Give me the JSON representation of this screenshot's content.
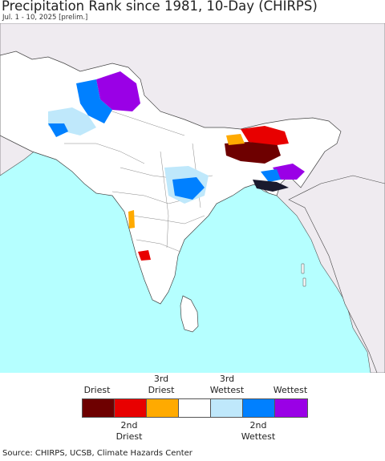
{
  "title": "Precipitation Rank since 1981, 10-Day (CHIRPS)",
  "subtitle": "Jul. 1 - 10, 2025 [prelim.]",
  "legend": {
    "top_labels": [
      {
        "text": "Driest"
      },
      {
        "text": "3rd Driest"
      },
      {
        "text": "3rd Wettest"
      },
      {
        "text": "Wettest"
      }
    ],
    "bottom_labels": [
      {
        "text": "2nd Driest"
      },
      {
        "text": "2nd Wettest"
      }
    ],
    "colors": [
      "#6e0000",
      "#e80000",
      "#ffaa00",
      "#ffffff",
      "#bfe8fb",
      "#0080ff",
      "#9a00e6"
    ]
  },
  "source": "Source: CHIRPS, UCSB, Climate Hazards Center",
  "colors": {
    "ocean": "#b5ffff",
    "land": "#ffffff",
    "outside_land": "#efebf0",
    "border": "#444444"
  }
}
